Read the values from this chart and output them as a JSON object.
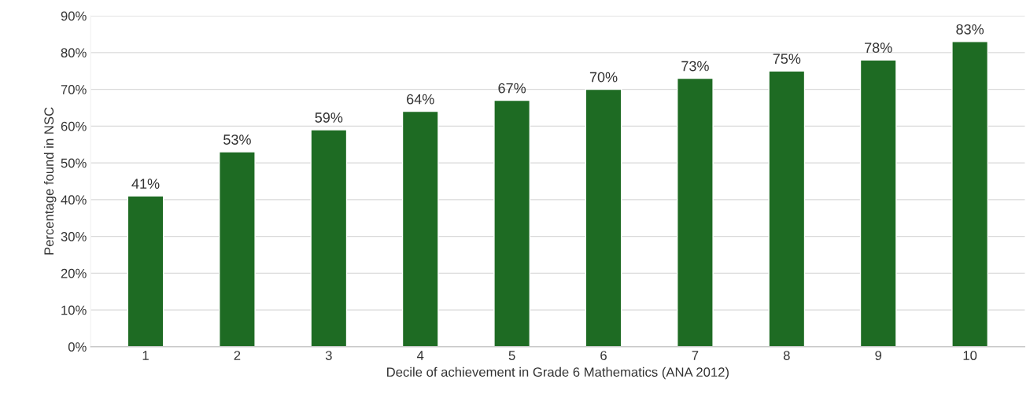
{
  "chart_data": {
    "type": "bar",
    "xlabel": "Decile of achievement in Grade 6 Mathematics (ANA 2012)",
    "ylabel": "Percentage found in NSC",
    "categories": [
      "1",
      "2",
      "3",
      "4",
      "5",
      "6",
      "7",
      "8",
      "9",
      "10"
    ],
    "values": [
      41,
      53,
      59,
      64,
      67,
      70,
      73,
      75,
      78,
      83
    ],
    "value_labels": [
      "41%",
      "53%",
      "59%",
      "64%",
      "67%",
      "70%",
      "73%",
      "75%",
      "78%",
      "83%"
    ],
    "color": "#1e6b23",
    "ylim": [
      0,
      90
    ],
    "yticks": [
      {
        "value": 0,
        "label": "0%"
      },
      {
        "value": 10,
        "label": "10%"
      },
      {
        "value": 20,
        "label": "20%"
      },
      {
        "value": 30,
        "label": "30%"
      },
      {
        "value": 40,
        "label": "40%"
      },
      {
        "value": 50,
        "label": "50%"
      },
      {
        "value": 60,
        "label": "60%"
      },
      {
        "value": 70,
        "label": "70%"
      },
      {
        "value": 80,
        "label": "80%"
      },
      {
        "value": 90,
        "label": "90%"
      }
    ],
    "grid": "y",
    "legend": false
  }
}
